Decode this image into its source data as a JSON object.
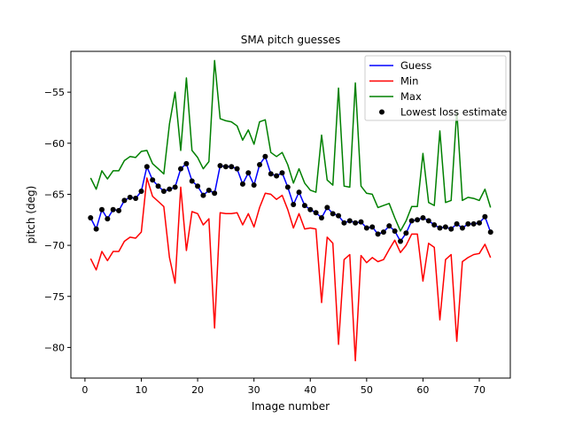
{
  "chart_data": {
    "type": "line",
    "title": "SMA pitch guesses",
    "xlabel": "Image number",
    "ylabel": "pitch (deg)",
    "xlim": [
      -2.5,
      75.5
    ],
    "ylim": [
      -83,
      -51
    ],
    "xticks": [
      0,
      10,
      20,
      30,
      40,
      50,
      60,
      70
    ],
    "yticks": [
      -80,
      -75,
      -70,
      -65,
      -60,
      -55
    ],
    "legend_position": "upper right",
    "x": [
      1,
      2,
      3,
      4,
      5,
      6,
      7,
      8,
      9,
      10,
      11,
      12,
      13,
      14,
      15,
      16,
      17,
      18,
      19,
      20,
      21,
      22,
      23,
      24,
      25,
      26,
      27,
      28,
      29,
      30,
      31,
      32,
      33,
      34,
      35,
      36,
      37,
      38,
      39,
      40,
      41,
      42,
      43,
      44,
      45,
      46,
      47,
      48,
      49,
      50,
      51,
      52,
      53,
      54,
      55,
      56,
      57,
      58,
      59,
      60,
      61,
      62,
      63,
      64,
      65,
      66,
      67,
      68,
      69,
      70,
      71,
      72
    ],
    "series": [
      {
        "name": "Guess",
        "color": "#0000ff",
        "values": [
          -67.3,
          -68.4,
          -66.5,
          -67.4,
          -66.5,
          -66.6,
          -65.6,
          -65.3,
          -65.4,
          -64.7,
          -62.3,
          -63.6,
          -64.2,
          -64.7,
          -64.5,
          -64.3,
          -62.5,
          -62.0,
          -63.7,
          -64.2,
          -65.1,
          -64.6,
          -64.9,
          -62.2,
          -62.3,
          -62.3,
          -62.5,
          -64.0,
          -62.9,
          -64.1,
          -62.1,
          -61.3,
          -63.0,
          -63.2,
          -62.9,
          -64.3,
          -66.0,
          -64.8,
          -66.1,
          -66.5,
          -66.8,
          -67.3,
          -66.3,
          -66.9,
          -67.1,
          -67.8,
          -67.6,
          -67.8,
          -67.7,
          -68.3,
          -68.2,
          -68.9,
          -68.7,
          -68.1,
          -68.6,
          -69.6,
          -68.8,
          -67.6,
          -67.5,
          -67.3,
          -67.6,
          -68.0,
          -68.3,
          -68.2,
          -68.4,
          -67.9,
          -68.3,
          -67.9,
          -67.9,
          -67.8,
          -67.2,
          -68.7
        ]
      },
      {
        "name": "Min",
        "color": "#ff0000",
        "values": [
          -71.3,
          -72.4,
          -70.6,
          -71.5,
          -70.6,
          -70.6,
          -69.6,
          -69.2,
          -69.3,
          -68.7,
          -63.4,
          -65.2,
          -65.7,
          -66.2,
          -71.2,
          -73.7,
          -64.3,
          -70.5,
          -66.7,
          -66.9,
          -68.0,
          -67.4,
          -78.1,
          -66.8,
          -66.9,
          -66.9,
          -66.8,
          -68.0,
          -66.9,
          -68.2,
          -66.3,
          -64.9,
          -65.0,
          -65.5,
          -65.1,
          -66.5,
          -68.3,
          -66.9,
          -68.4,
          -68.3,
          -68.4,
          -75.6,
          -69.2,
          -69.8,
          -79.7,
          -71.4,
          -70.9,
          -81.3,
          -71.0,
          -71.7,
          -71.2,
          -71.6,
          -71.4,
          -70.4,
          -69.5,
          -70.7,
          -70.0,
          -68.9,
          -68.9,
          -73.5,
          -69.8,
          -70.2,
          -77.3,
          -71.4,
          -70.9,
          -79.4,
          -71.6,
          -71.2,
          -70.9,
          -70.8,
          -69.9,
          -71.2
        ]
      },
      {
        "name": "Max",
        "color": "#008000",
        "values": [
          -63.4,
          -64.5,
          -62.7,
          -63.5,
          -62.7,
          -62.7,
          -61.7,
          -61.3,
          -61.4,
          -60.8,
          -60.7,
          -62.0,
          -62.5,
          -63.0,
          -58.1,
          -55.0,
          -60.7,
          -53.6,
          -60.7,
          -61.4,
          -62.5,
          -61.8,
          -51.9,
          -57.6,
          -57.8,
          -57.9,
          -58.3,
          -59.7,
          -58.7,
          -60.1,
          -57.9,
          -57.7,
          -60.9,
          -61.3,
          -60.9,
          -62.1,
          -63.9,
          -62.5,
          -63.9,
          -64.6,
          -64.8,
          -59.2,
          -63.6,
          -64.1,
          -54.6,
          -64.2,
          -64.3,
          -54.1,
          -64.2,
          -64.9,
          -65.0,
          -66.3,
          -66.1,
          -65.9,
          -67.3,
          -68.6,
          -67.6,
          -66.2,
          -66.2,
          -61.0,
          -65.8,
          -66.1,
          -58.8,
          -65.8,
          -65.6,
          -56.8,
          -65.6,
          -65.3,
          -65.4,
          -65.6,
          -64.5,
          -66.3
        ]
      },
      {
        "name": "Lowest loss estimate",
        "color": "#000000",
        "marker": "circle",
        "values": [
          -67.3,
          -68.4,
          -66.5,
          -67.4,
          -66.5,
          -66.6,
          -65.6,
          -65.3,
          -65.4,
          -64.7,
          -62.3,
          -63.6,
          -64.2,
          -64.7,
          -64.5,
          -64.3,
          -62.5,
          -62.0,
          -63.7,
          -64.2,
          -65.1,
          -64.6,
          -64.9,
          -62.2,
          -62.3,
          -62.3,
          -62.5,
          -64.0,
          -62.9,
          -64.1,
          -62.1,
          -61.3,
          -63.0,
          -63.2,
          -62.9,
          -64.3,
          -66.0,
          -64.8,
          -66.1,
          -66.5,
          -66.8,
          -67.3,
          -66.3,
          -66.9,
          -67.1,
          -67.8,
          -67.6,
          -67.8,
          -67.7,
          -68.3,
          -68.2,
          -68.9,
          -68.7,
          -68.1,
          -68.6,
          -69.6,
          -68.8,
          -67.6,
          -67.5,
          -67.3,
          -67.6,
          -68.0,
          -68.3,
          -68.2,
          -68.4,
          -67.9,
          -68.3,
          -67.9,
          -67.9,
          -67.8,
          -67.2,
          -68.7
        ]
      }
    ]
  }
}
